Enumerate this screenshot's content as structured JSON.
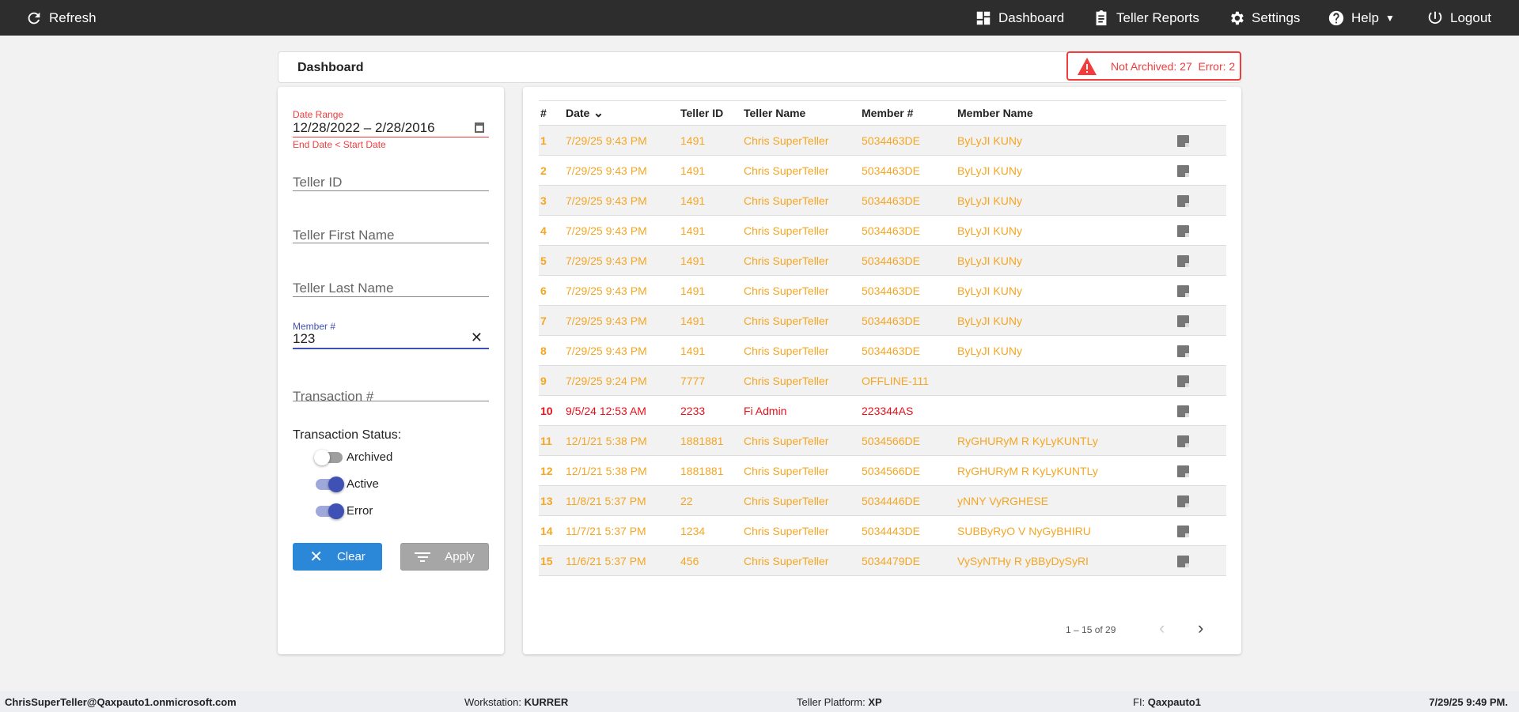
{
  "topbar": {
    "refresh": "Refresh",
    "dashboard": "Dashboard",
    "teller_reports": "Teller Reports",
    "settings": "Settings",
    "help": "Help",
    "logout": "Logout"
  },
  "header": {
    "title": "Dashboard",
    "alert": "Not Archived: 27  Error: 2"
  },
  "filters": {
    "date_range_label": "Date Range",
    "date_range_value": "12/28/2022 – 2/28/2016",
    "date_range_error": "End Date < Start Date",
    "teller_id": "Teller ID",
    "teller_first": "Teller First Name",
    "teller_last": "Teller Last Name",
    "member_label": "Member #",
    "member_value": "123",
    "transaction": "Transaction #",
    "status_title": "Transaction Status:",
    "toggles": [
      {
        "label": "Archived",
        "on": false
      },
      {
        "label": "Active",
        "on": true
      },
      {
        "label": "Error",
        "on": true
      }
    ],
    "clear": "Clear",
    "apply": "Apply"
  },
  "colors": {
    "normal": "#f5a623",
    "error": "#e8101a",
    "accent": "#3f51b5",
    "clear_btn": "#2b88d8",
    "apply_btn": "#a6a6a6"
  },
  "table": {
    "columns": [
      "#",
      "Date",
      "Teller ID",
      "Teller Name",
      "Member #",
      "Member Name"
    ],
    "rows": [
      [
        "1",
        "7/29/25 9:43 PM",
        "1491",
        "Chris SuperTeller",
        "5034463DE",
        "ByLyJI KUNy"
      ],
      [
        "2",
        "7/29/25 9:43 PM",
        "1491",
        "Chris SuperTeller",
        "5034463DE",
        "ByLyJI KUNy"
      ],
      [
        "3",
        "7/29/25 9:43 PM",
        "1491",
        "Chris SuperTeller",
        "5034463DE",
        "ByLyJI KUNy"
      ],
      [
        "4",
        "7/29/25 9:43 PM",
        "1491",
        "Chris SuperTeller",
        "5034463DE",
        "ByLyJI KUNy"
      ],
      [
        "5",
        "7/29/25 9:43 PM",
        "1491",
        "Chris SuperTeller",
        "5034463DE",
        "ByLyJI KUNy"
      ],
      [
        "6",
        "7/29/25 9:43 PM",
        "1491",
        "Chris SuperTeller",
        "5034463DE",
        "ByLyJI KUNy"
      ],
      [
        "7",
        "7/29/25 9:43 PM",
        "1491",
        "Chris SuperTeller",
        "5034463DE",
        "ByLyJI KUNy"
      ],
      [
        "8",
        "7/29/25 9:43 PM",
        "1491",
        "Chris SuperTeller",
        "5034463DE",
        "ByLyJI KUNy"
      ],
      [
        "9",
        "7/29/25 9:24 PM",
        "7777",
        "Chris SuperTeller",
        "OFFLINE-111",
        ""
      ],
      [
        "10",
        "9/5/24 12:53 AM",
        "2233",
        "Fi Admin",
        "223344AS",
        ""
      ],
      [
        "11",
        "12/1/21 5:38 PM",
        "1881881",
        "Chris SuperTeller",
        "5034566DE",
        "RyGHURyM R KyLyKUNTLy"
      ],
      [
        "12",
        "12/1/21 5:38 PM",
        "1881881",
        "Chris SuperTeller",
        "5034566DE",
        "RyGHURyM R KyLyKUNTLy"
      ],
      [
        "13",
        "11/8/21 5:37 PM",
        "22",
        "Chris SuperTeller",
        "5034446DE",
        "yNNY VyRGHESE"
      ],
      [
        "14",
        "11/7/21 5:37 PM",
        "1234",
        "Chris SuperTeller",
        "5034443DE",
        "SUBByRyO V NyGyBHIRU"
      ],
      [
        "15",
        "11/6/21 5:37 PM",
        "456",
        "Chris SuperTeller",
        "5034479DE",
        "VySyNTHy R yBByDySyRI"
      ]
    ],
    "error_rows": [
      "10"
    ],
    "pagination": "1 – 15 of 29"
  },
  "footer": {
    "user": "ChrisSuperTeller@Qaxpauto1.onmicrosoft.com",
    "workstation_label": "Workstation:",
    "workstation": "KURRER",
    "platform_label": "Teller Platform:",
    "platform": "XP",
    "fi_label": "FI:",
    "fi": "Qaxpauto1",
    "datetime": "7/29/25 9:49 PM."
  }
}
